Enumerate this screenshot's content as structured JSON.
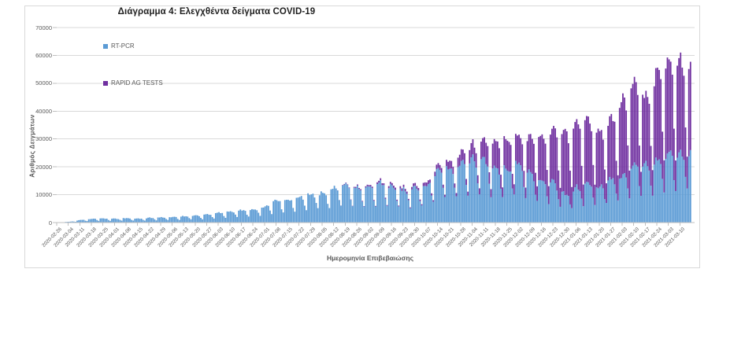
{
  "page": {
    "background": "#ffffff",
    "card_border": "#d9d9d9"
  },
  "chart_data": {
    "type": "bar",
    "stacked": true,
    "title": "Διάγραμμα 4: Ελεγχθέντα δείγματα COVID-19",
    "xlabel": "Ημερομηνία Επιβεβαιώσης",
    "ylabel": "Αριθμός Δειγμάτων",
    "ylim": [
      0,
      70000
    ],
    "y_ticks": [
      0,
      10000,
      20000,
      30000,
      40000,
      50000,
      60000,
      70000
    ],
    "grid": "horizontal",
    "legend_position": "inside-top-left",
    "x_resolution": "daily stacked bars from 2020-02-26 to 2021-03-16; weekly tick labels; values below are weekly mid-week anchor levels read from the chart",
    "categories": [
      "2020-02-26",
      "2020-03-04",
      "2020-03-11",
      "2020-03-18",
      "2020-03-25",
      "2020-04-01",
      "2020-04-08",
      "2020-04-15",
      "2020-04-22",
      "2020-04-29",
      "2020-05-06",
      "2020-05-13",
      "2020-05-20",
      "2020-05-27",
      "2020-06-03",
      "2020-06-10",
      "2020-06-17",
      "2020-06-24",
      "2020-07-01",
      "2020-07-08",
      "2020-07-15",
      "2020-07-22",
      "2020-07-29",
      "2020-08-05",
      "2020-08-12",
      "2020-08-19",
      "2020-08-26",
      "2020-09-02",
      "2020-09-09",
      "2020-09-16",
      "2020-09-23",
      "2020-09-30",
      "2020-10-07",
      "2020-10-14",
      "2020-10-21",
      "2020-10-28",
      "2020-11-04",
      "2020-11-11",
      "2020-11-18",
      "2020-11-25",
      "2020-12-02",
      "2020-12-09",
      "2020-12-16",
      "2020-12-23",
      "2020-12-30",
      "2021-01-06",
      "2021-01-13",
      "2021-01-20",
      "2021-01-27",
      "2021-02-03",
      "2021-02-10",
      "2021-02-17",
      "2021-02-24",
      "2021-03-03",
      "2021-03-10"
    ],
    "series": [
      {
        "name": "RT-PCR",
        "color": "#5B9BD5",
        "values": [
          60,
          300,
          900,
          1400,
          1500,
          1400,
          1650,
          1450,
          1750,
          1950,
          2050,
          2300,
          2600,
          3000,
          3600,
          4200,
          4600,
          5000,
          5800,
          8200,
          8000,
          9500,
          10500,
          11000,
          12500,
          14800,
          13000,
          12500,
          14500,
          13000,
          12000,
          12500,
          13500,
          19800,
          19500,
          22000,
          23000,
          22500,
          21000,
          19500,
          22500,
          17500,
          15500,
          15000,
          10000,
          13000,
          14000,
          13000,
          16000,
          17000,
          22000,
          21000,
          23000,
          26000,
          25500
        ]
      },
      {
        "name": "RAPID AG TESTS",
        "color": "#7030A0",
        "values": [
          0,
          0,
          0,
          0,
          0,
          0,
          0,
          0,
          0,
          0,
          0,
          0,
          0,
          0,
          0,
          0,
          0,
          0,
          0,
          0,
          0,
          0,
          0,
          0,
          0,
          200,
          400,
          500,
          700,
          800,
          900,
          1000,
          1300,
          1700,
          2800,
          4000,
          5200,
          7500,
          9500,
          11500,
          10000,
          13500,
          16500,
          19500,
          22500,
          24000,
          25000,
          20000,
          22000,
          28500,
          30500,
          24000,
          31500,
          35300,
          34000
        ]
      }
    ],
    "render": {
      "days": 385,
      "start_weekday": "Wed",
      "weekday_profile_rtpcr": [
        0.97,
        1.0,
        1.0,
        0.96,
        0.9,
        0.62,
        0.45
      ],
      "weekday_profile_rapid": [
        0.95,
        1.0,
        1.0,
        0.95,
        0.88,
        0.5,
        0.33
      ],
      "jitter": 0.07,
      "seed": 97
    },
    "colors": {
      "gridline": "#d9d9d9",
      "axis_line": "#bfbfbf",
      "tick_text": "#595959",
      "title_text": "#1f1f1f"
    }
  }
}
